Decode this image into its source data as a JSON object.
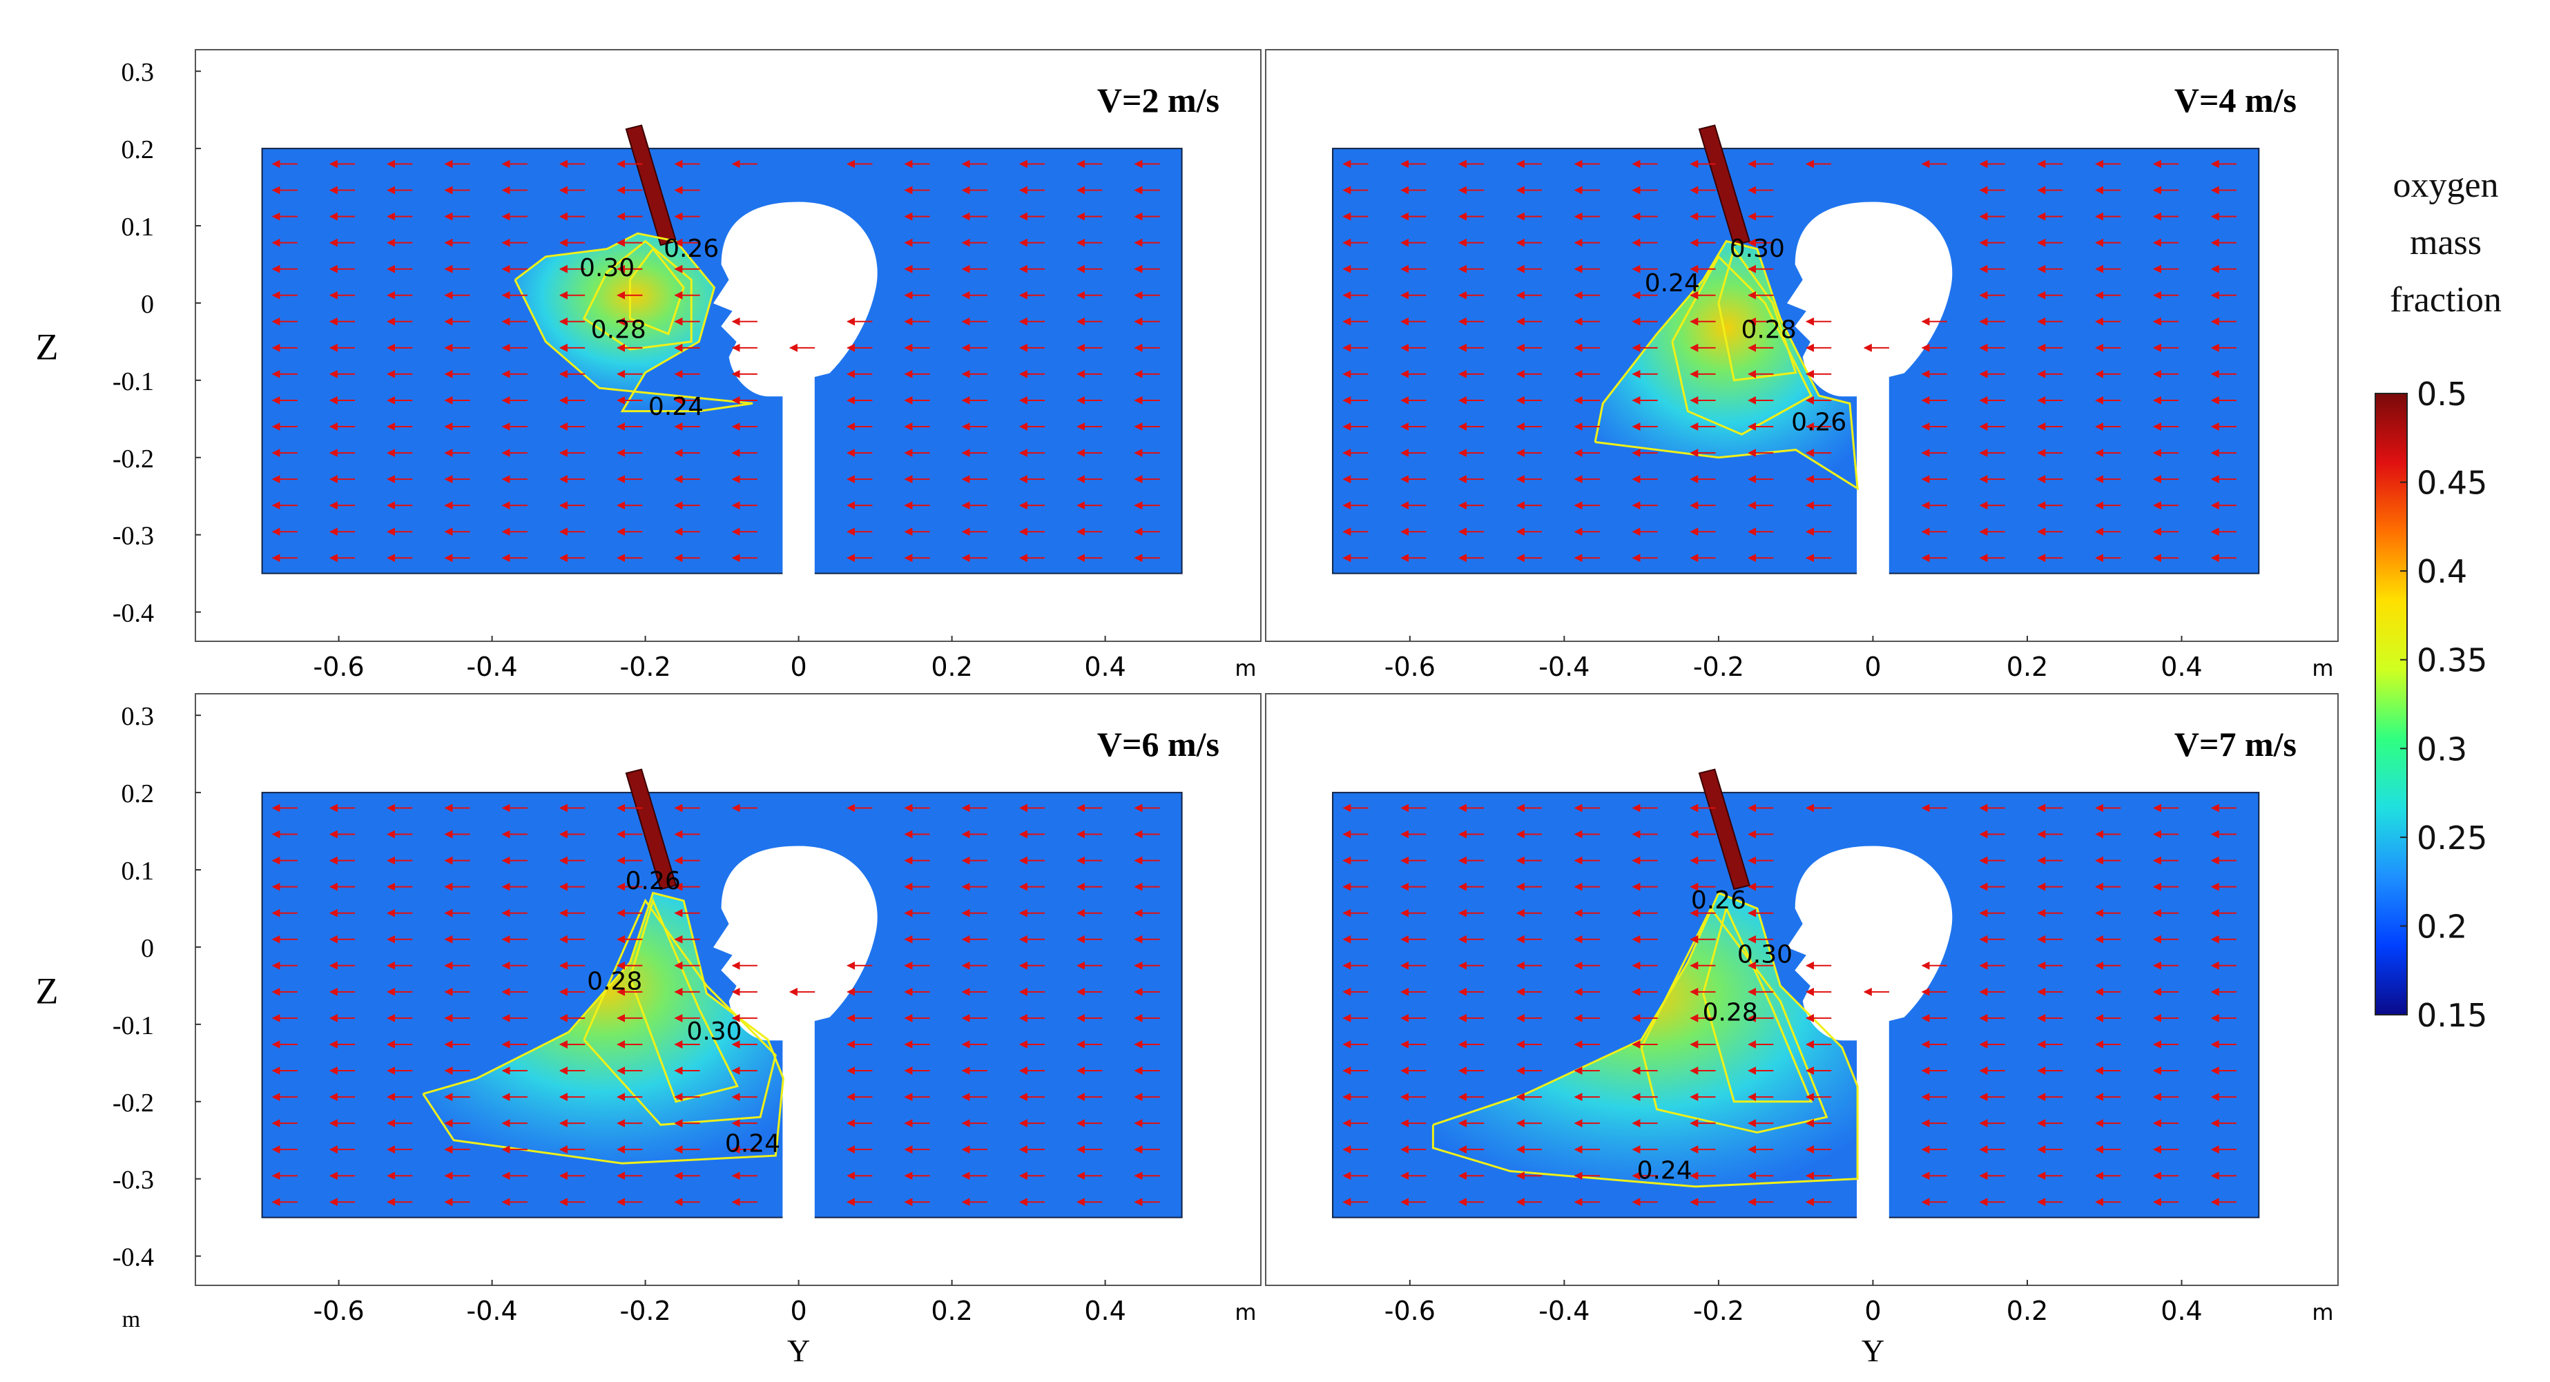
{
  "colors": {
    "domain_fill": "#1f74ee",
    "contour": "#f0f018",
    "arrow": "#e01010",
    "nozzle": "#8a0d0d",
    "frame": "#555555"
  },
  "axis": {
    "z_label": "Z",
    "y_label": "Y",
    "unit_label": "m",
    "y_ticks": [
      "-0.6",
      "-0.4",
      "-0.2",
      "0",
      "0.2",
      "0.4"
    ],
    "z_ticks": [
      "0.3",
      "0.2",
      "0.1",
      "0",
      "-0.1",
      "-0.2",
      "-0.3",
      "-0.4"
    ],
    "y_range": [
      -0.76,
      0.54
    ],
    "z_range": [
      -0.42,
      0.31
    ]
  },
  "panels": [
    {
      "title": "V=2 m/s",
      "contour_labels": [
        {
          "text": "0.26",
          "y": -0.14,
          "z": 0.06
        },
        {
          "text": "0.30",
          "y": -0.25,
          "z": 0.035
        },
        {
          "text": "0.28",
          "y": -0.235,
          "z": -0.045
        },
        {
          "text": "0.24",
          "y": -0.16,
          "z": -0.145
        }
      ]
    },
    {
      "title": "V=4 m/s",
      "contour_labels": [
        {
          "text": "0.30",
          "y": -0.15,
          "z": 0.06
        },
        {
          "text": "0.24",
          "y": -0.26,
          "z": 0.015
        },
        {
          "text": "0.28",
          "y": -0.135,
          "z": -0.045
        },
        {
          "text": "0.26",
          "y": -0.07,
          "z": -0.165
        }
      ]
    },
    {
      "title": "V=6 m/s",
      "contour_labels": [
        {
          "text": "0.26",
          "y": -0.19,
          "z": 0.075
        },
        {
          "text": "0.28",
          "y": -0.24,
          "z": -0.055
        },
        {
          "text": "0.30",
          "y": -0.11,
          "z": -0.12
        },
        {
          "text": "0.24",
          "y": -0.06,
          "z": -0.265
        }
      ]
    },
    {
      "title": "V=7 m/s",
      "contour_labels": [
        {
          "text": "0.26",
          "y": -0.2,
          "z": 0.05
        },
        {
          "text": "0.30",
          "y": -0.14,
          "z": -0.02
        },
        {
          "text": "0.28",
          "y": -0.185,
          "z": -0.095
        },
        {
          "text": "0.24",
          "y": -0.27,
          "z": -0.3
        }
      ]
    }
  ],
  "colorbar": {
    "title_lines": [
      "oxygen",
      "mass",
      "fraction"
    ],
    "min": 0.15,
    "max": 0.5,
    "tick_values": [
      0.5,
      0.45,
      0.4,
      0.35,
      0.3,
      0.25,
      0.2,
      0.15
    ],
    "tick_labels": [
      "0.5",
      "0.45",
      "0.4",
      "0.35",
      "0.3",
      "0.25",
      "0.2",
      "0.15"
    ],
    "stops": [
      "#0a0a8a",
      "#0040ff",
      "#1e90ff",
      "#20e0e0",
      "#30ff80",
      "#d0ff20",
      "#ffe000",
      "#ff7000",
      "#e01010",
      "#7a0a0a"
    ]
  }
}
